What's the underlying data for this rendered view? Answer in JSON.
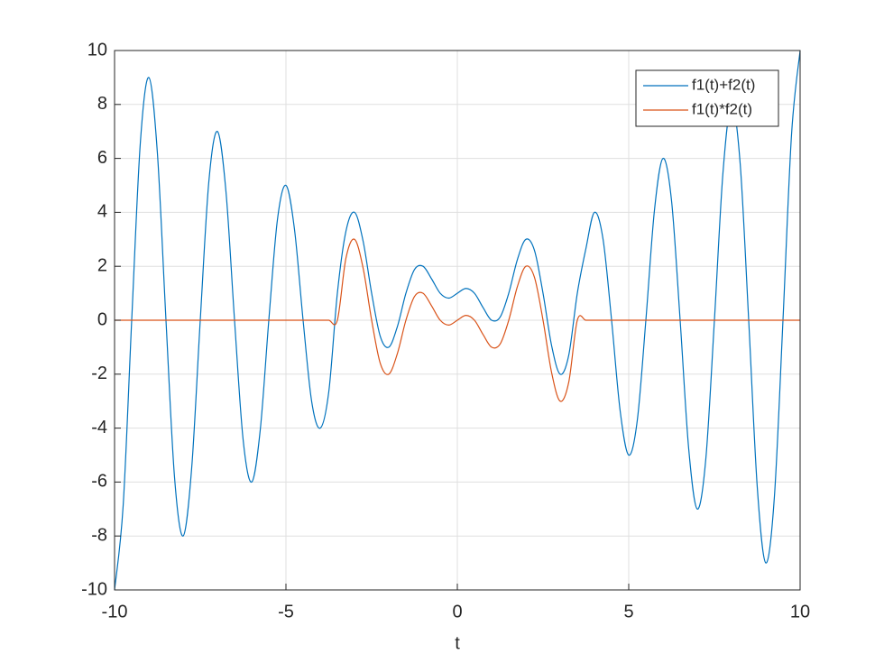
{
  "chart_data": {
    "type": "line",
    "xlabel": "t",
    "x": [
      -10,
      -9.75,
      -9.5,
      -9.25,
      -9,
      -8.75,
      -8.5,
      -8.25,
      -8,
      -7.75,
      -7.5,
      -7.25,
      -7,
      -6.75,
      -6.5,
      -6.25,
      -6,
      -5.75,
      -5.5,
      -5.25,
      -5,
      -4.75,
      -4.5,
      -4.25,
      -4,
      -3.75,
      -3.5,
      -3.25,
      -3,
      -2.75,
      -2.5,
      -2.25,
      -2,
      -1.75,
      -1.5,
      -1.25,
      -1,
      -0.75,
      -0.5,
      -0.25,
      0,
      0.25,
      0.5,
      0.75,
      1,
      1.25,
      1.5,
      1.75,
      2,
      2.25,
      2.5,
      2.75,
      3,
      3.25,
      3.5,
      3.75,
      4,
      4.25,
      4.5,
      4.75,
      5,
      5.25,
      5.5,
      5.75,
      6,
      6.25,
      6.5,
      6.75,
      7,
      7.25,
      7.5,
      7.75,
      8,
      8.25,
      8.5,
      8.75,
      9,
      9.25,
      9.5,
      9.75,
      10
    ],
    "series": [
      {
        "name": "f1(t)+f2(t)",
        "color": "#0072bd",
        "values": [
          -10,
          -6.89,
          0,
          6.54,
          9,
          6.19,
          0,
          -5.83,
          -8,
          -5.48,
          0,
          5.13,
          7,
          4.77,
          0,
          -4.42,
          -6,
          -4.07,
          0,
          3.71,
          5,
          3.36,
          0,
          -3.01,
          -4,
          -2.65,
          1,
          3.3,
          4,
          2.94,
          1,
          -0.59,
          -1,
          -0.24,
          1,
          1.88,
          2,
          1.53,
          1,
          0.82,
          1,
          1.18,
          1,
          0.47,
          0,
          0.12,
          1,
          2.24,
          3,
          2.59,
          1,
          -0.94,
          -2,
          -1.3,
          1,
          2.65,
          4,
          3.01,
          0,
          -3.36,
          -5,
          -3.71,
          0,
          4.07,
          6,
          4.42,
          0,
          -4.77,
          -7,
          -5.13,
          0,
          5.48,
          8,
          5.83,
          0,
          -6.19,
          -9,
          -6.54,
          0,
          6.89,
          10
        ]
      },
      {
        "name": "f1(t)*f2(t)",
        "color": "#d95319",
        "values": [
          0,
          0,
          0,
          0,
          0,
          0,
          0,
          0,
          0,
          0,
          0,
          0,
          0,
          0,
          0,
          0,
          0,
          0,
          0,
          0,
          0,
          0,
          0,
          0,
          0,
          0,
          0,
          2.3,
          3,
          1.94,
          0,
          -1.59,
          -2,
          -1.24,
          0,
          0.88,
          1,
          0.53,
          0,
          -0.18,
          0,
          0.18,
          0,
          -0.53,
          -1,
          -0.88,
          0,
          1.24,
          2,
          1.59,
          0,
          -1.94,
          -3,
          -2.3,
          0,
          0,
          0,
          0,
          0,
          0,
          0,
          0,
          0,
          0,
          0,
          0,
          0,
          0,
          0,
          0,
          0,
          0,
          0,
          0,
          0,
          0,
          0,
          0,
          0,
          0,
          0
        ]
      }
    ],
    "xlim": [
      -10,
      10
    ],
    "xticks": [
      -10,
      -5,
      0,
      5,
      10
    ],
    "ylim": [
      -10,
      10
    ],
    "yticks": [
      -10,
      -8,
      -6,
      -4,
      -2,
      0,
      2,
      4,
      6,
      8,
      10
    ],
    "grid": true,
    "legend": "northeast"
  }
}
